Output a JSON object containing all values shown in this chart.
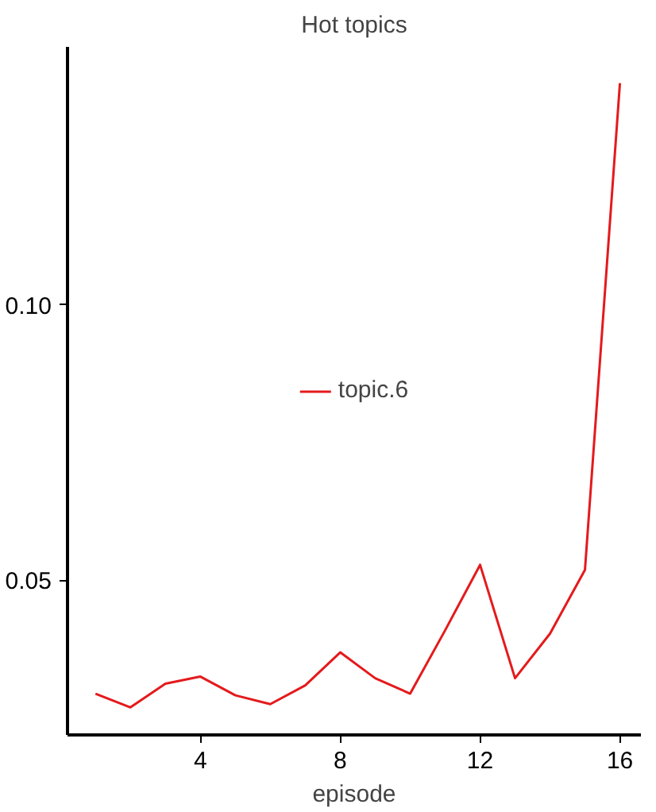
{
  "chart_data": {
    "type": "line",
    "title": "Hot topics",
    "xlabel": "episode",
    "x": [
      1,
      2,
      3,
      4,
      5,
      6,
      7,
      8,
      9,
      10,
      11,
      12,
      13,
      14,
      15,
      16
    ],
    "series": [
      {
        "name": "topic.6",
        "color": "#e41a1c",
        "values": [
          0.0294,
          0.0269,
          0.0312,
          0.0325,
          0.0291,
          0.0275,
          0.0309,
          0.0369,
          0.0322,
          0.0294,
          0.0409,
          0.0528,
          0.0322,
          0.0403,
          0.0519,
          0.1403
        ]
      }
    ],
    "xlim": [
      0.2,
      16.6
    ],
    "ylim": [
      0.0219,
      0.1469
    ],
    "xticks": [
      4,
      8,
      12,
      16
    ],
    "yticks": [
      {
        "value": 0.05,
        "label": "0.05"
      },
      {
        "value": 0.1,
        "label": "0.10"
      }
    ],
    "grid": false,
    "legend": "center",
    "marker": "none",
    "line_style": "solid"
  }
}
